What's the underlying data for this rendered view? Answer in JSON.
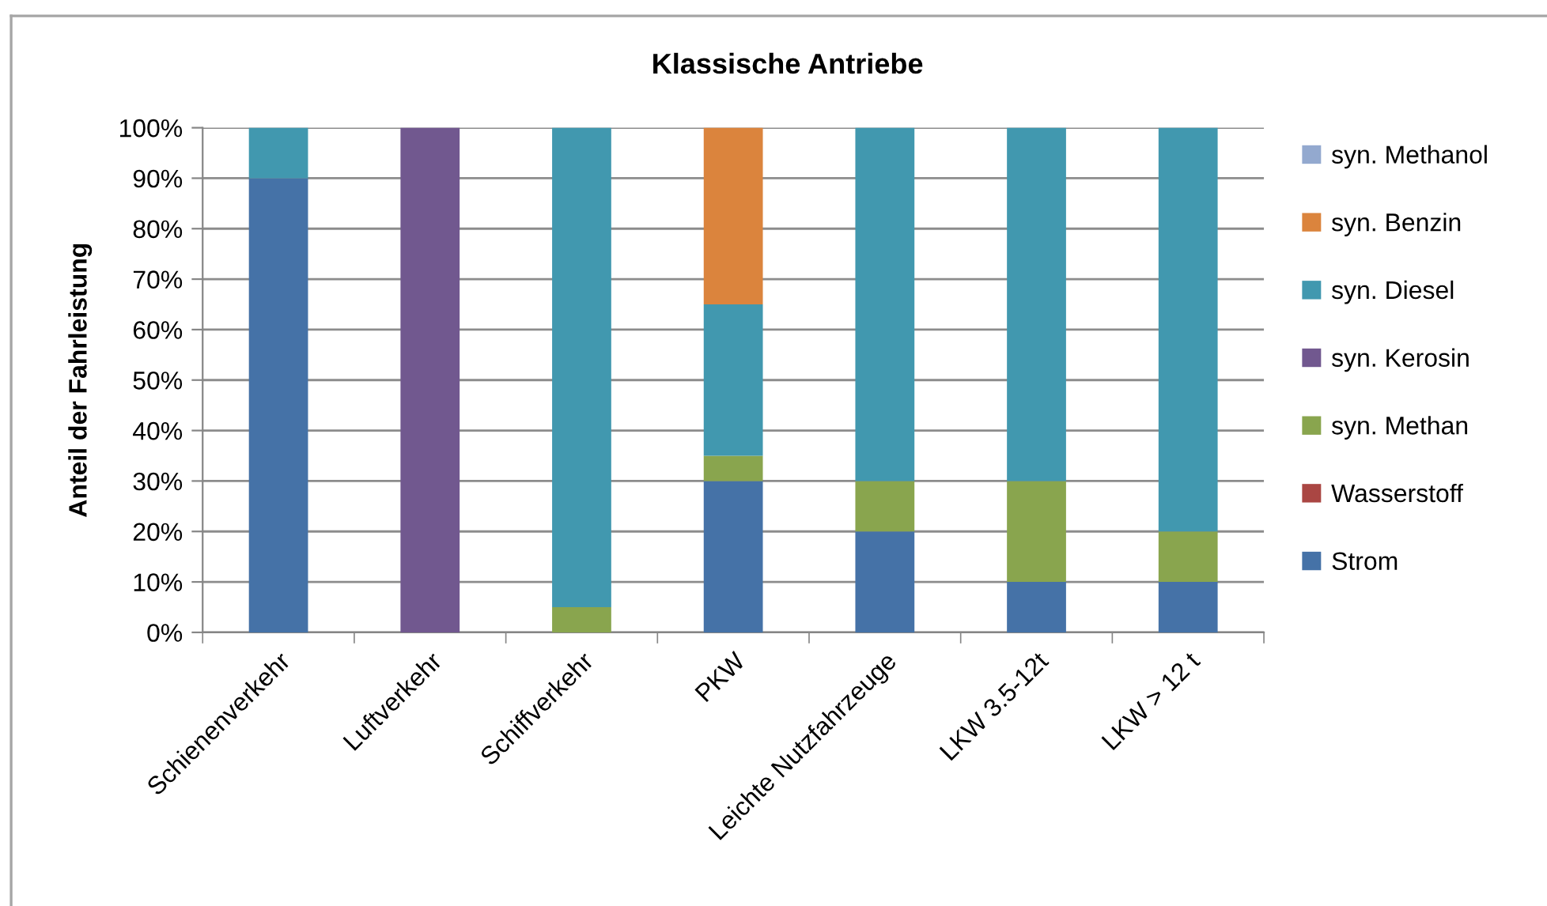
{
  "chart_data": {
    "type": "bar",
    "title": "Klassische Antriebe",
    "ylabel": "Anteil der Fahrleistung",
    "categories": [
      "Schienenverkehr",
      "Luftverkehr",
      "Schiffverkehr",
      "PKW",
      "Leichte Nutzfahrzeuge",
      "LKW 3.5-12t",
      "LKW > 12 t"
    ],
    "stacked": true,
    "series": [
      {
        "name": "Strom",
        "color": "#4572a7",
        "values": [
          90,
          null,
          null,
          30,
          20,
          10,
          10
        ]
      },
      {
        "name": "Wasserstoff",
        "color": "#aa4643",
        "values": [
          null,
          null,
          null,
          null,
          null,
          null,
          null
        ]
      },
      {
        "name": "syn. Methan",
        "color": "#89a54e",
        "values": [
          null,
          null,
          5,
          5,
          10,
          20,
          10
        ]
      },
      {
        "name": "syn. Kerosin",
        "color": "#71588f",
        "values": [
          null,
          100,
          null,
          null,
          null,
          null,
          null
        ]
      },
      {
        "name": "syn. Diesel",
        "color": "#4198af",
        "values": [
          10,
          null,
          95,
          30,
          70,
          70,
          80
        ]
      },
      {
        "name": "syn. Benzin",
        "color": "#db843d",
        "values": [
          null,
          null,
          null,
          35,
          null,
          null,
          null
        ]
      },
      {
        "name": "syn. Methanol",
        "color": "#93a9cf",
        "values": [
          null,
          null,
          null,
          null,
          null,
          null,
          null
        ]
      }
    ],
    "ylim": [
      0,
      100
    ],
    "yticks": [
      {
        "value": 0,
        "label": "0%"
      },
      {
        "value": 10,
        "label": "10%"
      },
      {
        "value": 20,
        "label": "20%"
      },
      {
        "value": 30,
        "label": "30%"
      },
      {
        "value": 40,
        "label": "40%"
      },
      {
        "value": 50,
        "label": "50%"
      },
      {
        "value": 60,
        "label": "60%"
      },
      {
        "value": 70,
        "label": "70%"
      },
      {
        "value": 80,
        "label": "80%"
      },
      {
        "value": 90,
        "label": "90%"
      },
      {
        "value": 100,
        "label": "100%"
      }
    ],
    "grid": "y",
    "legend": "right"
  }
}
